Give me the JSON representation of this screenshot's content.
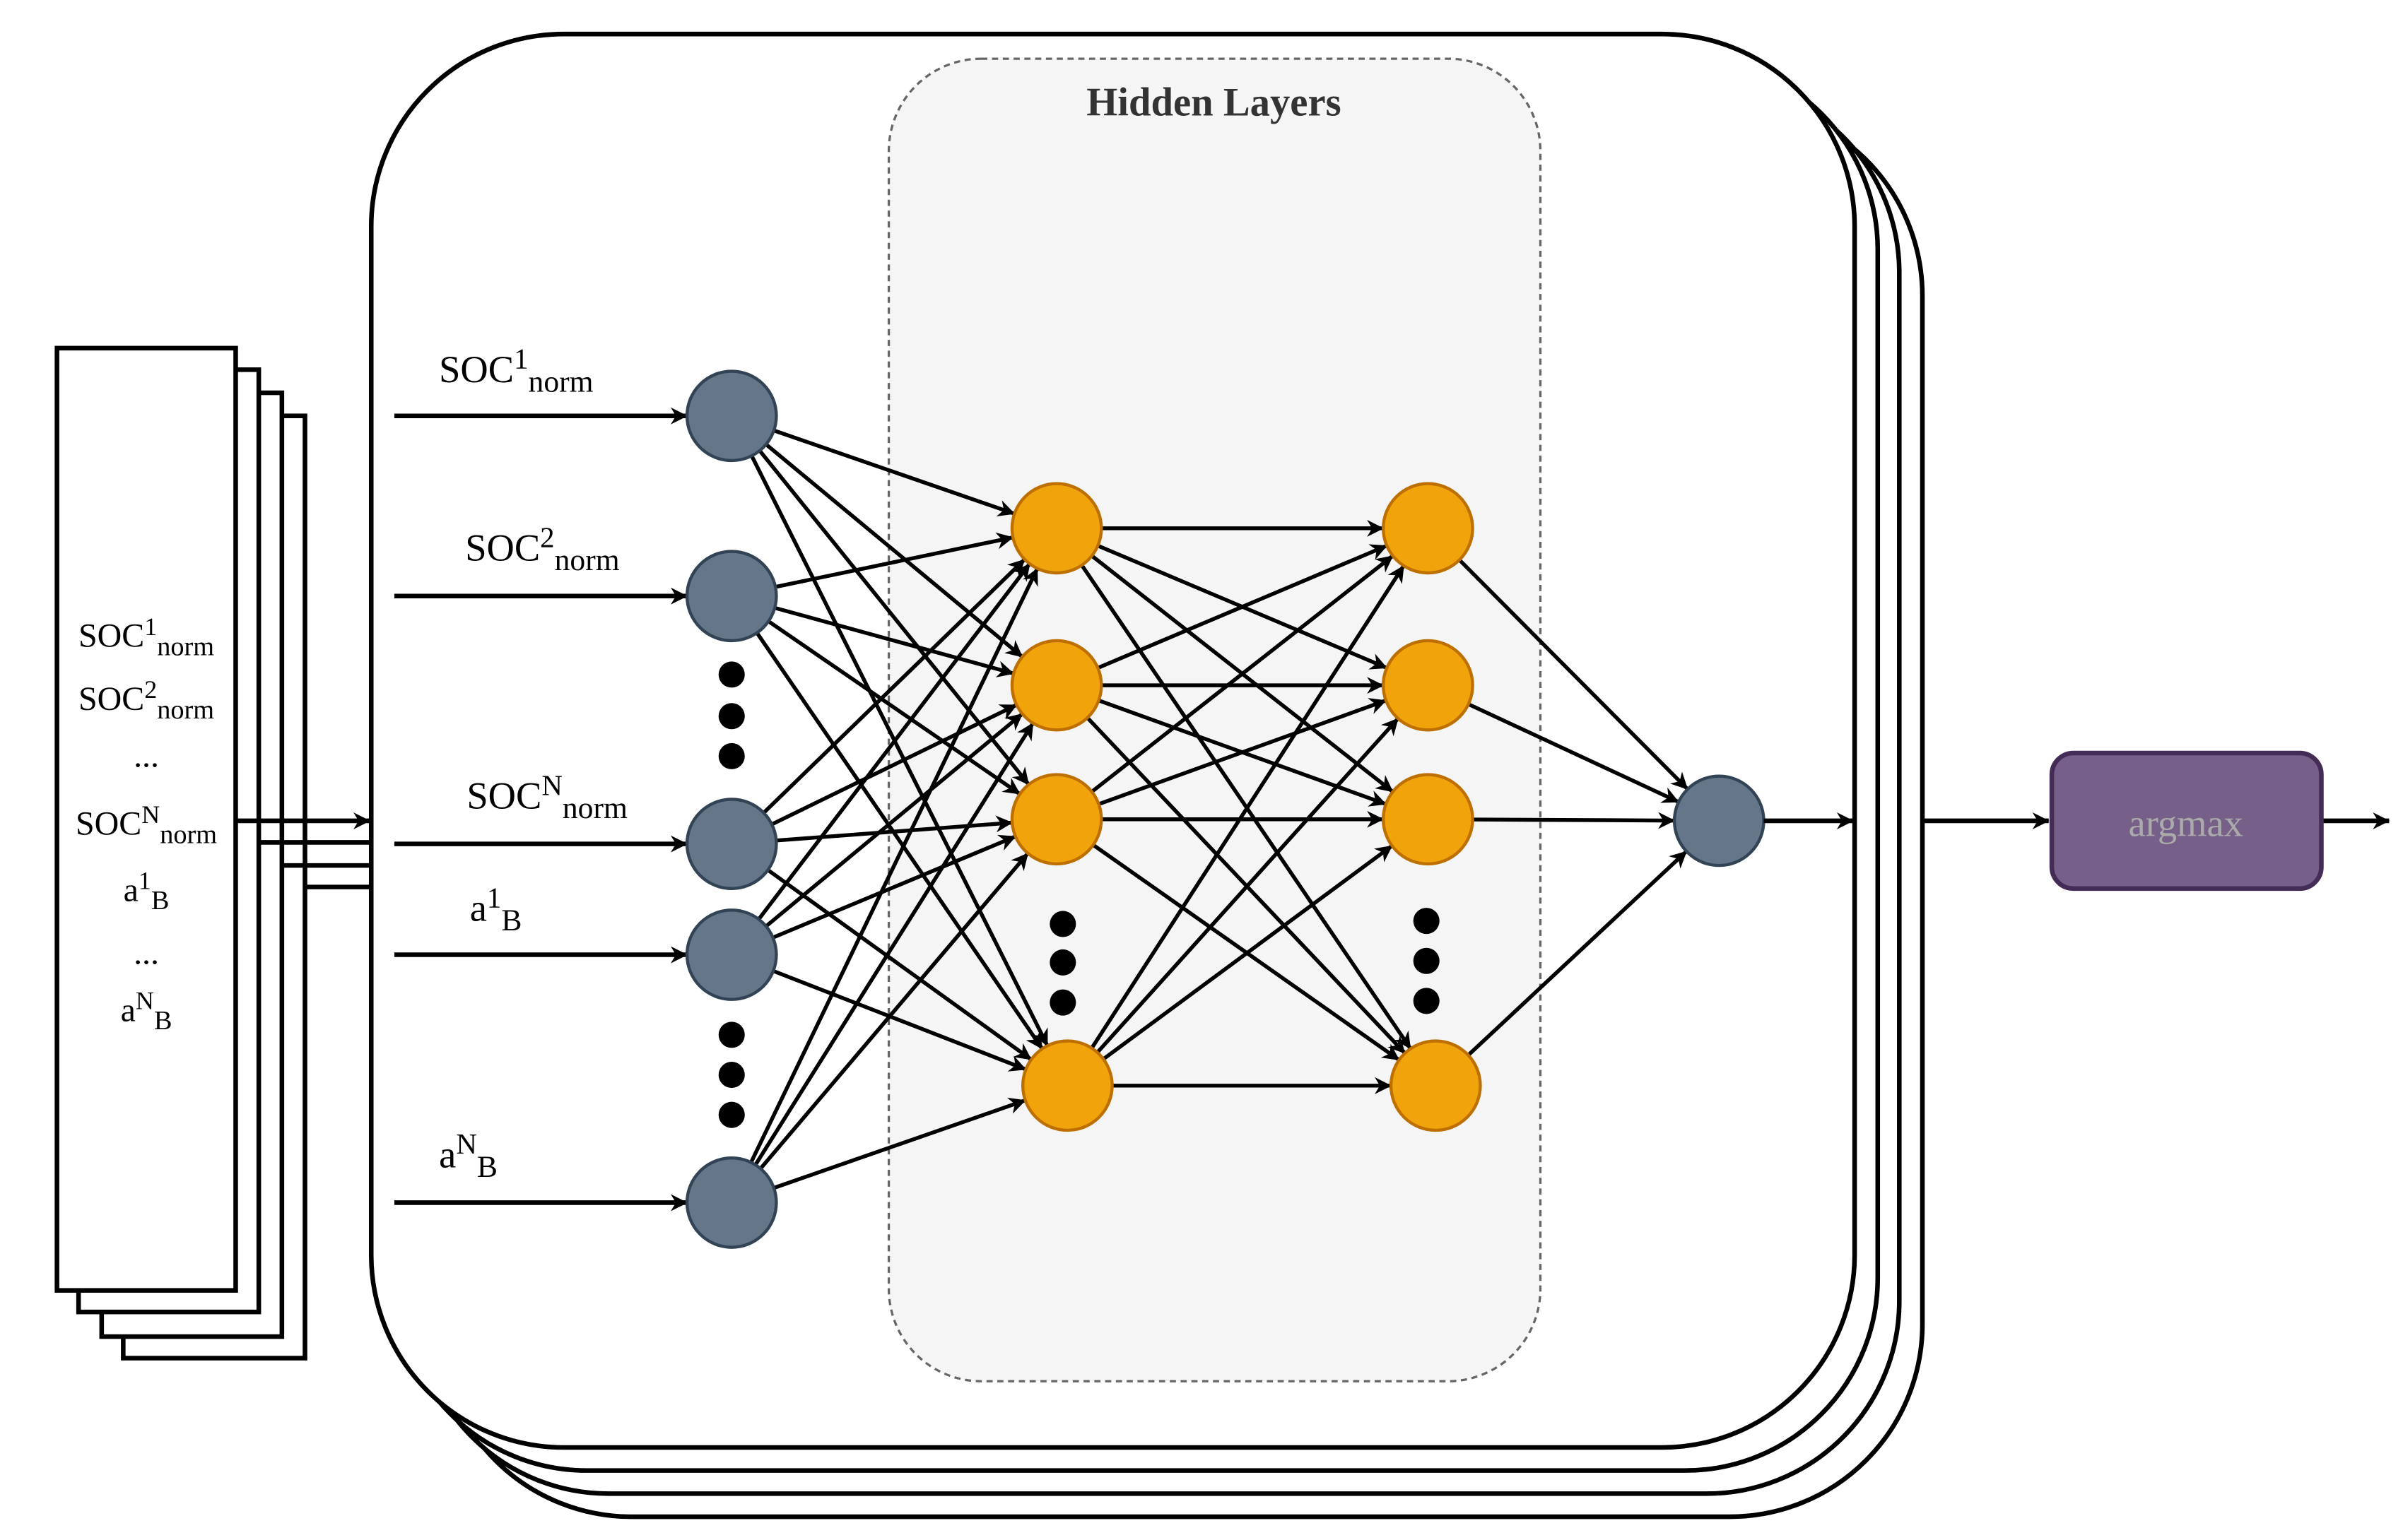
{
  "title": "Hidden Layers",
  "input_stack": {
    "lines": [
      {
        "base": "SOC",
        "sup": "1",
        "sub": "norm"
      },
      {
        "base": "SOC",
        "sup": "2",
        "sub": "norm"
      },
      {
        "base": "...",
        "sup": "",
        "sub": ""
      },
      {
        "base": "SOC",
        "sup": "N",
        "sub": "norm"
      },
      {
        "base": "a",
        "sup": "1",
        "sub": "B"
      },
      {
        "base": "...",
        "sup": "",
        "sub": ""
      },
      {
        "base": "a",
        "sup": "N",
        "sub": "B"
      }
    ]
  },
  "input_labels": [
    {
      "base": "SOC",
      "sup": "1",
      "sub": "norm"
    },
    {
      "base": "SOC",
      "sup": "2",
      "sub": "norm"
    },
    {
      "base": "SOC",
      "sup": "N",
      "sub": "norm"
    },
    {
      "base": "a",
      "sup": "1",
      "sub": "B"
    },
    {
      "base": "a",
      "sup": "N",
      "sub": "B"
    }
  ],
  "output_box": {
    "label": "argmax"
  },
  "colors": {
    "input_node": "#647687",
    "hidden_node": "#f0a30a",
    "output_node": "#647687",
    "hidden_panel": "#f5f5f5",
    "argmax_fill": "#76608a",
    "argmax_stroke": "#432d57",
    "argmax_text": "#aaaaaa"
  }
}
